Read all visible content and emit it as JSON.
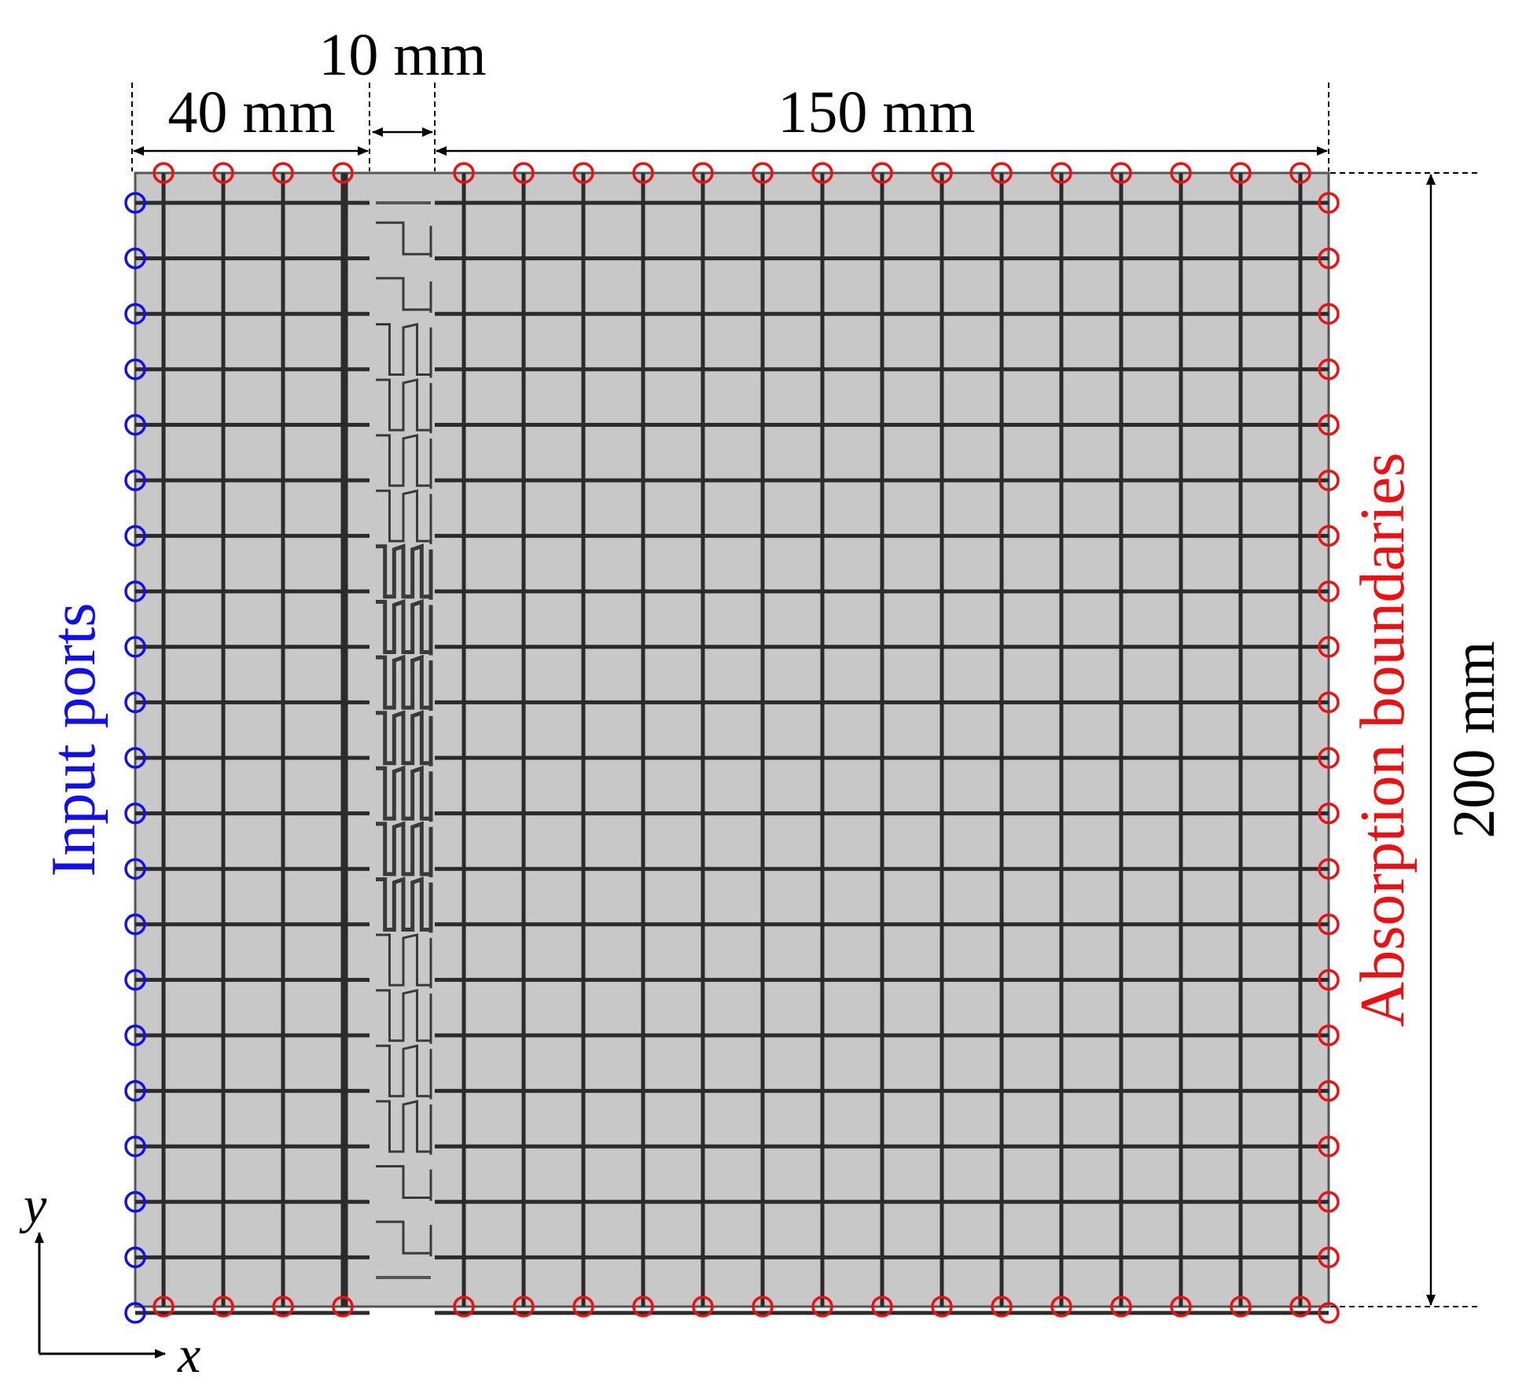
{
  "labels": {
    "dim_top_left": "40 mm",
    "dim_top_gap": "10 mm",
    "dim_top_right": "150 mm",
    "dim_height": "200 mm",
    "input_ports": "Input ports",
    "absorption_boundaries": "Absorption boundaries",
    "axis_x": "x",
    "axis_y": "y"
  },
  "colors": {
    "substrate": "#c8c8c8",
    "grid_line": "#2b2b2b",
    "input_port": "#1010ee",
    "absorption_port": "#ee1010",
    "dimension": "#000000"
  },
  "structure": {
    "left_grid_columns": 4,
    "right_grid_columns": 14,
    "grid_rows": 20,
    "left_port_count": 21,
    "right_port_count": 21,
    "top_port_count": 20,
    "bottom_port_count": 20,
    "meander_cell_count": 19
  }
}
